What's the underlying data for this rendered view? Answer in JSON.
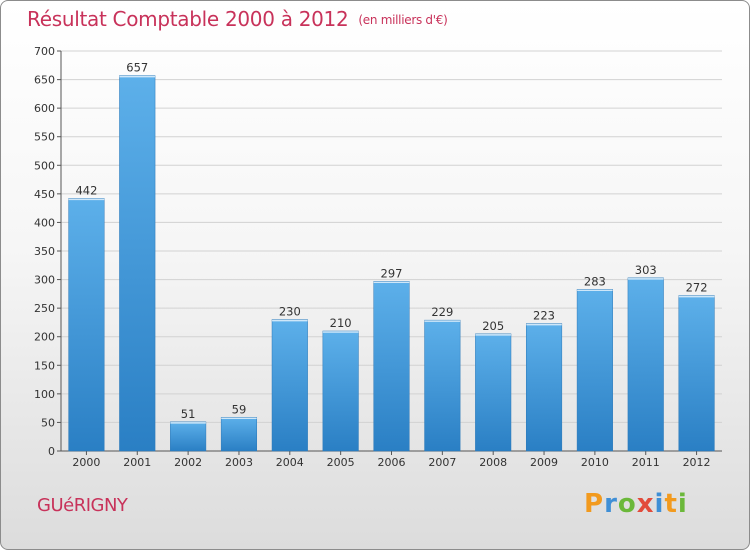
{
  "title": "Résultat Comptable 2000 à 2012",
  "subtitle": "(en milliers d'€)",
  "commune": "GUéRIGNY",
  "logo": {
    "letters": [
      {
        "char": "P",
        "color": "#f29a1e"
      },
      {
        "char": "r",
        "color": "#3f8fd6"
      },
      {
        "char": "o",
        "color": "#6bb83a"
      },
      {
        "char": "x",
        "color": "#e24b3b"
      },
      {
        "char": "i",
        "color": "#3f8fd6"
      },
      {
        "char": "t",
        "color": "#f29a1e"
      },
      {
        "char": "i",
        "color": "#6bb83a"
      }
    ]
  },
  "colors": {
    "bar_top": "#5db0ea",
    "bar_bottom": "#2a7fc4",
    "title": "#c8325a"
  },
  "chart_data": {
    "type": "bar",
    "title": "Résultat Comptable 2000 à 2012",
    "ylabel": "en milliers d'€",
    "xlabel": "",
    "categories": [
      "2000",
      "2001",
      "2002",
      "2003",
      "2004",
      "2005",
      "2006",
      "2007",
      "2008",
      "2009",
      "2010",
      "2011",
      "2012"
    ],
    "values": [
      442,
      657,
      51,
      59,
      230,
      210,
      297,
      229,
      205,
      223,
      283,
      303,
      272
    ],
    "ylim": [
      0,
      700
    ],
    "yticks": [
      0,
      50,
      100,
      150,
      200,
      250,
      300,
      350,
      400,
      450,
      500,
      550,
      600,
      650,
      700
    ],
    "grid": true
  }
}
